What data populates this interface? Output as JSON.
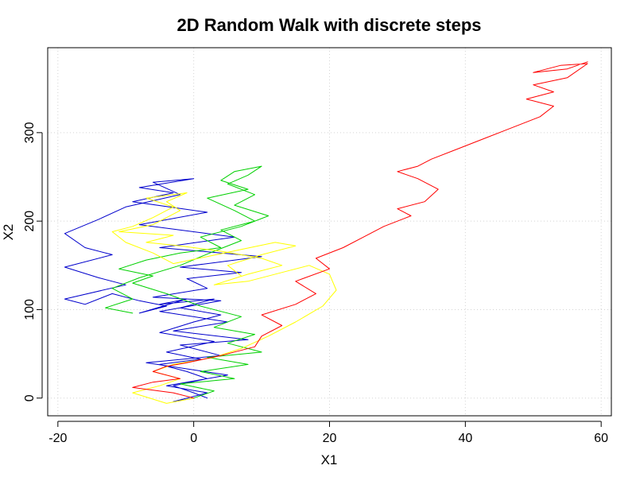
{
  "chart_data": {
    "type": "line",
    "title": "2D Random Walk with discrete steps",
    "xlabel": "X1",
    "ylabel": "X2",
    "xlim": [
      -21.5,
      61.5
    ],
    "ylim": [
      -20,
      396
    ],
    "grid": true,
    "x_ticks": [
      -20,
      0,
      20,
      40,
      60
    ],
    "y_ticks": [
      0,
      100,
      200,
      300
    ],
    "series": [
      {
        "color": "#0000cc",
        "points": [
          [
            0,
            0
          ],
          [
            -3,
            -4
          ],
          [
            2,
            6
          ],
          [
            -4,
            14
          ],
          [
            5,
            26
          ],
          [
            -7,
            40
          ],
          [
            4,
            48
          ],
          [
            -2,
            60
          ],
          [
            8,
            66
          ],
          [
            -3,
            76
          ],
          [
            5,
            86
          ],
          [
            -5,
            98
          ],
          [
            4,
            110
          ],
          [
            -6,
            114
          ],
          [
            2,
            124
          ],
          [
            -1,
            135
          ],
          [
            7,
            142
          ],
          [
            -2,
            148
          ],
          [
            10,
            160
          ],
          [
            -5,
            170
          ],
          [
            6,
            182
          ],
          [
            -8,
            196
          ],
          [
            2,
            210
          ],
          [
            -9,
            222
          ],
          [
            -3,
            232
          ],
          [
            -8,
            238
          ],
          [
            0,
            248
          ],
          [
            -6,
            244
          ],
          [
            -2,
            230
          ],
          [
            -10,
            216
          ],
          [
            -14,
            202
          ],
          [
            -19,
            186
          ],
          [
            -16,
            170
          ],
          [
            -12,
            162
          ],
          [
            -19,
            148
          ],
          [
            -14,
            136
          ],
          [
            -10,
            128
          ],
          [
            -19,
            112
          ],
          [
            -16,
            106
          ],
          [
            -12,
            118
          ],
          [
            -8,
            110
          ],
          [
            -4,
            104
          ],
          [
            -8,
            96
          ],
          [
            -1,
            112
          ],
          [
            -5,
            106
          ],
          [
            3,
            112
          ],
          [
            -2,
            102
          ],
          [
            4,
            94
          ],
          [
            0,
            86
          ],
          [
            -5,
            74
          ],
          [
            3,
            64
          ],
          [
            -4,
            52
          ],
          [
            1,
            44
          ],
          [
            -5,
            38
          ],
          [
            -1,
            30
          ],
          [
            2,
            22
          ],
          [
            -3,
            14
          ],
          [
            0,
            6
          ],
          [
            2,
            0
          ]
        ]
      },
      {
        "color": "#00d000",
        "points": [
          [
            0,
            0
          ],
          [
            3,
            8
          ],
          [
            -2,
            16
          ],
          [
            6,
            22
          ],
          [
            1,
            30
          ],
          [
            8,
            38
          ],
          [
            2,
            46
          ],
          [
            10,
            52
          ],
          [
            5,
            62
          ],
          [
            9,
            72
          ],
          [
            3,
            80
          ],
          [
            7,
            92
          ],
          [
            1,
            104
          ],
          [
            -4,
            118
          ],
          [
            -9,
            130
          ],
          [
            -6,
            138
          ],
          [
            -11,
            146
          ],
          [
            -7,
            156
          ],
          [
            -2,
            164
          ],
          [
            4,
            170
          ],
          [
            1,
            182
          ],
          [
            7,
            194
          ],
          [
            11,
            206
          ],
          [
            6,
            218
          ],
          [
            9,
            230
          ],
          [
            5,
            242
          ],
          [
            8,
            252
          ],
          [
            10,
            262
          ],
          [
            6,
            256
          ],
          [
            4,
            246
          ],
          [
            8,
            236
          ],
          [
            2,
            226
          ],
          [
            6,
            212
          ],
          [
            9,
            200
          ],
          [
            4,
            190
          ],
          [
            7,
            178
          ],
          [
            3,
            166
          ],
          [
            -2,
            150
          ],
          [
            -8,
            136
          ],
          [
            -12,
            124
          ],
          [
            -9,
            112
          ],
          [
            -13,
            102
          ],
          [
            -9,
            96
          ]
        ]
      },
      {
        "color": "#ffff00",
        "points": [
          [
            0,
            0
          ],
          [
            -4,
            -6
          ],
          [
            -9,
            6
          ],
          [
            -5,
            14
          ],
          [
            -2,
            22
          ],
          [
            -6,
            30
          ],
          [
            -3,
            38
          ],
          [
            3,
            46
          ],
          [
            7,
            56
          ],
          [
            11,
            70
          ],
          [
            15,
            86
          ],
          [
            19,
            104
          ],
          [
            21,
            122
          ],
          [
            20,
            140
          ],
          [
            17,
            150
          ],
          [
            13,
            142
          ],
          [
            8,
            132
          ],
          [
            3,
            128
          ],
          [
            8,
            140
          ],
          [
            13,
            150
          ],
          [
            10,
            158
          ],
          [
            4,
            166
          ],
          [
            -2,
            172
          ],
          [
            -7,
            176
          ],
          [
            -3,
            184
          ],
          [
            -11,
            188
          ],
          [
            -6,
            196
          ],
          [
            -2,
            212
          ],
          [
            -4,
            222
          ],
          [
            -1,
            232
          ],
          [
            -7,
            226
          ],
          [
            -3,
            216
          ],
          [
            -6,
            204
          ],
          [
            -9,
            194
          ],
          [
            -12,
            188
          ],
          [
            -10,
            176
          ],
          [
            -6,
            164
          ],
          [
            -3,
            152
          ],
          [
            2,
            160
          ],
          [
            7,
            168
          ],
          [
            12,
            176
          ],
          [
            15,
            172
          ],
          [
            10,
            162
          ],
          [
            5,
            150
          ],
          [
            7,
            138
          ]
        ]
      },
      {
        "color": "#ff0000",
        "points": [
          [
            0,
            0
          ],
          [
            -3,
            6
          ],
          [
            -9,
            12
          ],
          [
            -6,
            18
          ],
          [
            -2,
            22
          ],
          [
            -6,
            30
          ],
          [
            -4,
            36
          ],
          [
            -1,
            40
          ],
          [
            4,
            48
          ],
          [
            9,
            58
          ],
          [
            10,
            70
          ],
          [
            13,
            82
          ],
          [
            10,
            94
          ],
          [
            15,
            106
          ],
          [
            18,
            118
          ],
          [
            15,
            132
          ],
          [
            20,
            146
          ],
          [
            18,
            158
          ],
          [
            22,
            170
          ],
          [
            25,
            182
          ],
          [
            28,
            194
          ],
          [
            32,
            206
          ],
          [
            30,
            214
          ],
          [
            34,
            222
          ],
          [
            36,
            236
          ],
          [
            33,
            248
          ],
          [
            30,
            256
          ],
          [
            33,
            262
          ],
          [
            35,
            270
          ],
          [
            39,
            282
          ],
          [
            43,
            294
          ],
          [
            47,
            306
          ],
          [
            51,
            318
          ],
          [
            53,
            330
          ],
          [
            49,
            338
          ],
          [
            53,
            346
          ],
          [
            50,
            354
          ],
          [
            55,
            362
          ],
          [
            58,
            378
          ],
          [
            54,
            376
          ],
          [
            50,
            368
          ],
          [
            55,
            372
          ],
          [
            58,
            380
          ]
        ]
      }
    ]
  }
}
